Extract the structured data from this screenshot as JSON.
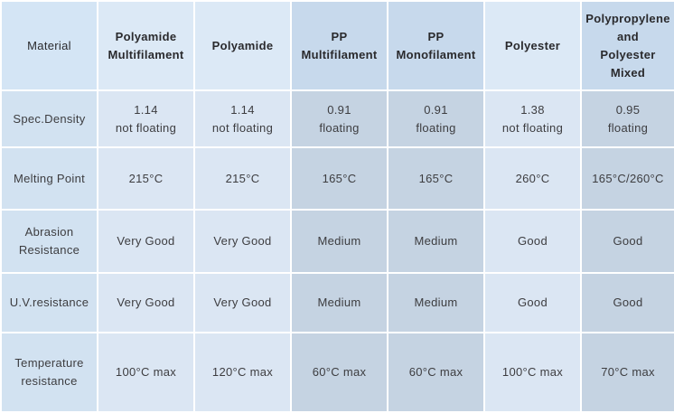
{
  "table": {
    "headers": [
      [
        "Material"
      ],
      [
        "Polyamide",
        "Multifilament"
      ],
      [
        "Polyamide"
      ],
      [
        "PP",
        "Multifilament"
      ],
      [
        "PP",
        "Monofilament"
      ],
      [
        "Polyester"
      ],
      [
        "Polypropylene and",
        "Polyester Mixed"
      ]
    ],
    "rows": [
      {
        "label": [
          "Spec.Density"
        ],
        "cells": [
          [
            "1.14",
            "not floating"
          ],
          [
            "1.14",
            "not floating"
          ],
          [
            "0.91",
            "floating"
          ],
          [
            "0.91",
            "floating"
          ],
          [
            "1.38",
            "not floating"
          ],
          [
            "0.95",
            "floating"
          ]
        ]
      },
      {
        "label": [
          "Melting Point"
        ],
        "cells": [
          [
            "215°C"
          ],
          [
            "215°C"
          ],
          [
            "165°C"
          ],
          [
            "165°C"
          ],
          [
            "260°C"
          ],
          [
            "165°C/260°C"
          ]
        ]
      },
      {
        "label": [
          "Abrasion",
          "Resistance"
        ],
        "cells": [
          [
            "Very Good"
          ],
          [
            "Very Good"
          ],
          [
            "Medium"
          ],
          [
            "Medium"
          ],
          [
            "Good"
          ],
          [
            "Good"
          ]
        ]
      },
      {
        "label": [
          "U.V.resistance"
        ],
        "cells": [
          [
            "Very Good"
          ],
          [
            "Very Good"
          ],
          [
            "Medium"
          ],
          [
            "Medium"
          ],
          [
            "Good"
          ],
          [
            "Good"
          ]
        ]
      },
      {
        "label": [
          "Temperature",
          "resistance"
        ],
        "cells": [
          [
            "100°C max"
          ],
          [
            "120°C max"
          ],
          [
            "60°C max"
          ],
          [
            "60°C max"
          ],
          [
            "100°C max"
          ],
          [
            "70°C max"
          ]
        ]
      }
    ]
  }
}
